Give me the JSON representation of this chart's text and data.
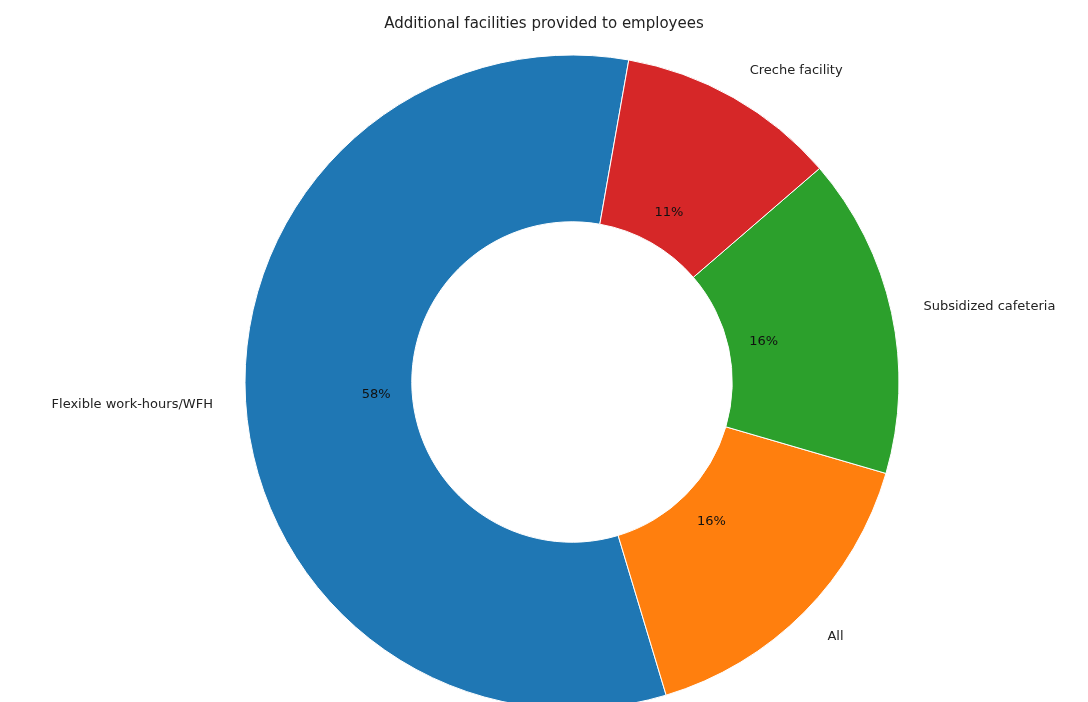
{
  "chart_data": {
    "type": "donut",
    "title": "Additional facilities provided to employees",
    "categories": [
      "Flexible work-hours/WFH",
      "All",
      "Subsidized cafeteria",
      "Creche facility"
    ],
    "values": [
      58,
      16,
      16,
      11
    ],
    "value_labels": [
      "58%",
      "16%",
      "16%",
      "11%"
    ],
    "colors": [
      "#1f77b4",
      "#ff7f0e",
      "#2ca02c",
      "#d62728"
    ]
  }
}
